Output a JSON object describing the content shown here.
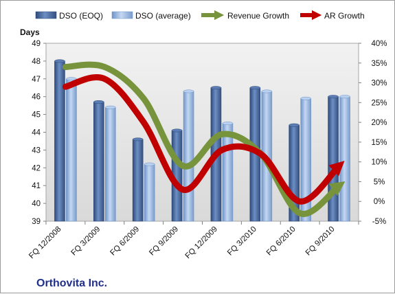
{
  "chart_data": {
    "type": "bar",
    "categories": [
      "FQ 12/2008",
      "FQ 3/2009",
      "FQ 6/2009",
      "FQ 9/2009",
      "FQ 12/2009",
      "FQ 3/2010",
      "FQ 6/2010",
      "FQ 9/2010"
    ],
    "series": [
      {
        "name": "DSO (EOQ)",
        "type": "bar",
        "axis": "left",
        "color": "#4a6fa8",
        "values": [
          48.0,
          45.7,
          43.6,
          44.1,
          46.5,
          46.5,
          44.4,
          46.0
        ]
      },
      {
        "name": "DSO (average)",
        "type": "bar",
        "axis": "left",
        "color": "#8fb3e3",
        "values": [
          47.0,
          45.4,
          42.2,
          46.3,
          44.5,
          46.3,
          45.9,
          46.0
        ]
      },
      {
        "name": "Revenue Growth",
        "type": "line",
        "axis": "right",
        "color": "#77933c",
        "values": [
          34,
          34,
          26,
          9,
          17,
          12,
          -3,
          4
        ]
      },
      {
        "name": "AR Growth",
        "type": "line",
        "axis": "right",
        "color": "#c00000",
        "values": [
          29,
          31,
          20,
          3,
          13,
          12,
          0,
          9
        ]
      }
    ],
    "ylabel": "Days",
    "ylim": [
      39,
      49
    ],
    "y_ticks": [
      "39",
      "40",
      "41",
      "42",
      "43",
      "44",
      "45",
      "46",
      "47",
      "48",
      "49"
    ],
    "y2lim": [
      -5,
      40
    ],
    "y2_ticks": [
      "-5%",
      "0%",
      "5%",
      "10%",
      "15%",
      "20%",
      "25%",
      "30%",
      "35%",
      "40%"
    ],
    "legend": "top",
    "grid": false,
    "annotation": "Orthovita Inc."
  }
}
